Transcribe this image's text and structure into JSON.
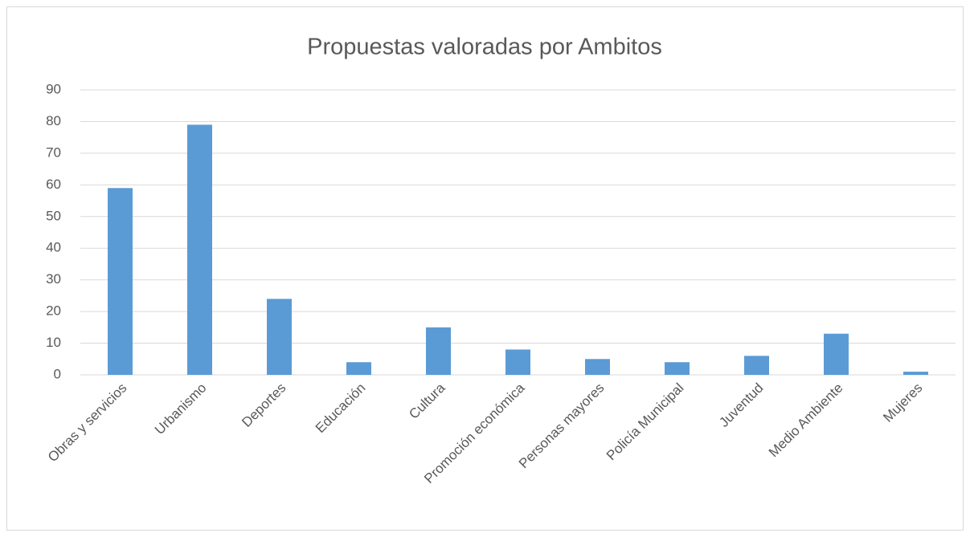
{
  "chart_data": {
    "type": "bar",
    "title": "Propuestas valoradas por Ambitos",
    "categories": [
      "Obras y servicios",
      "Urbanismo",
      "Deportes",
      "Educación",
      "Cultura",
      "Promoción económica",
      "Personas mayores",
      "Policía Municipal",
      "Juventud",
      "Medio Ambiente",
      "Mujeres"
    ],
    "values": [
      59,
      79,
      24,
      4,
      15,
      8,
      5,
      4,
      6,
      13,
      1
    ],
    "color": "#5b9bd5",
    "ylim": [
      0,
      90
    ],
    "yticks": [
      0,
      10,
      20,
      30,
      40,
      50,
      60,
      70,
      80,
      90
    ],
    "grid": true
  }
}
